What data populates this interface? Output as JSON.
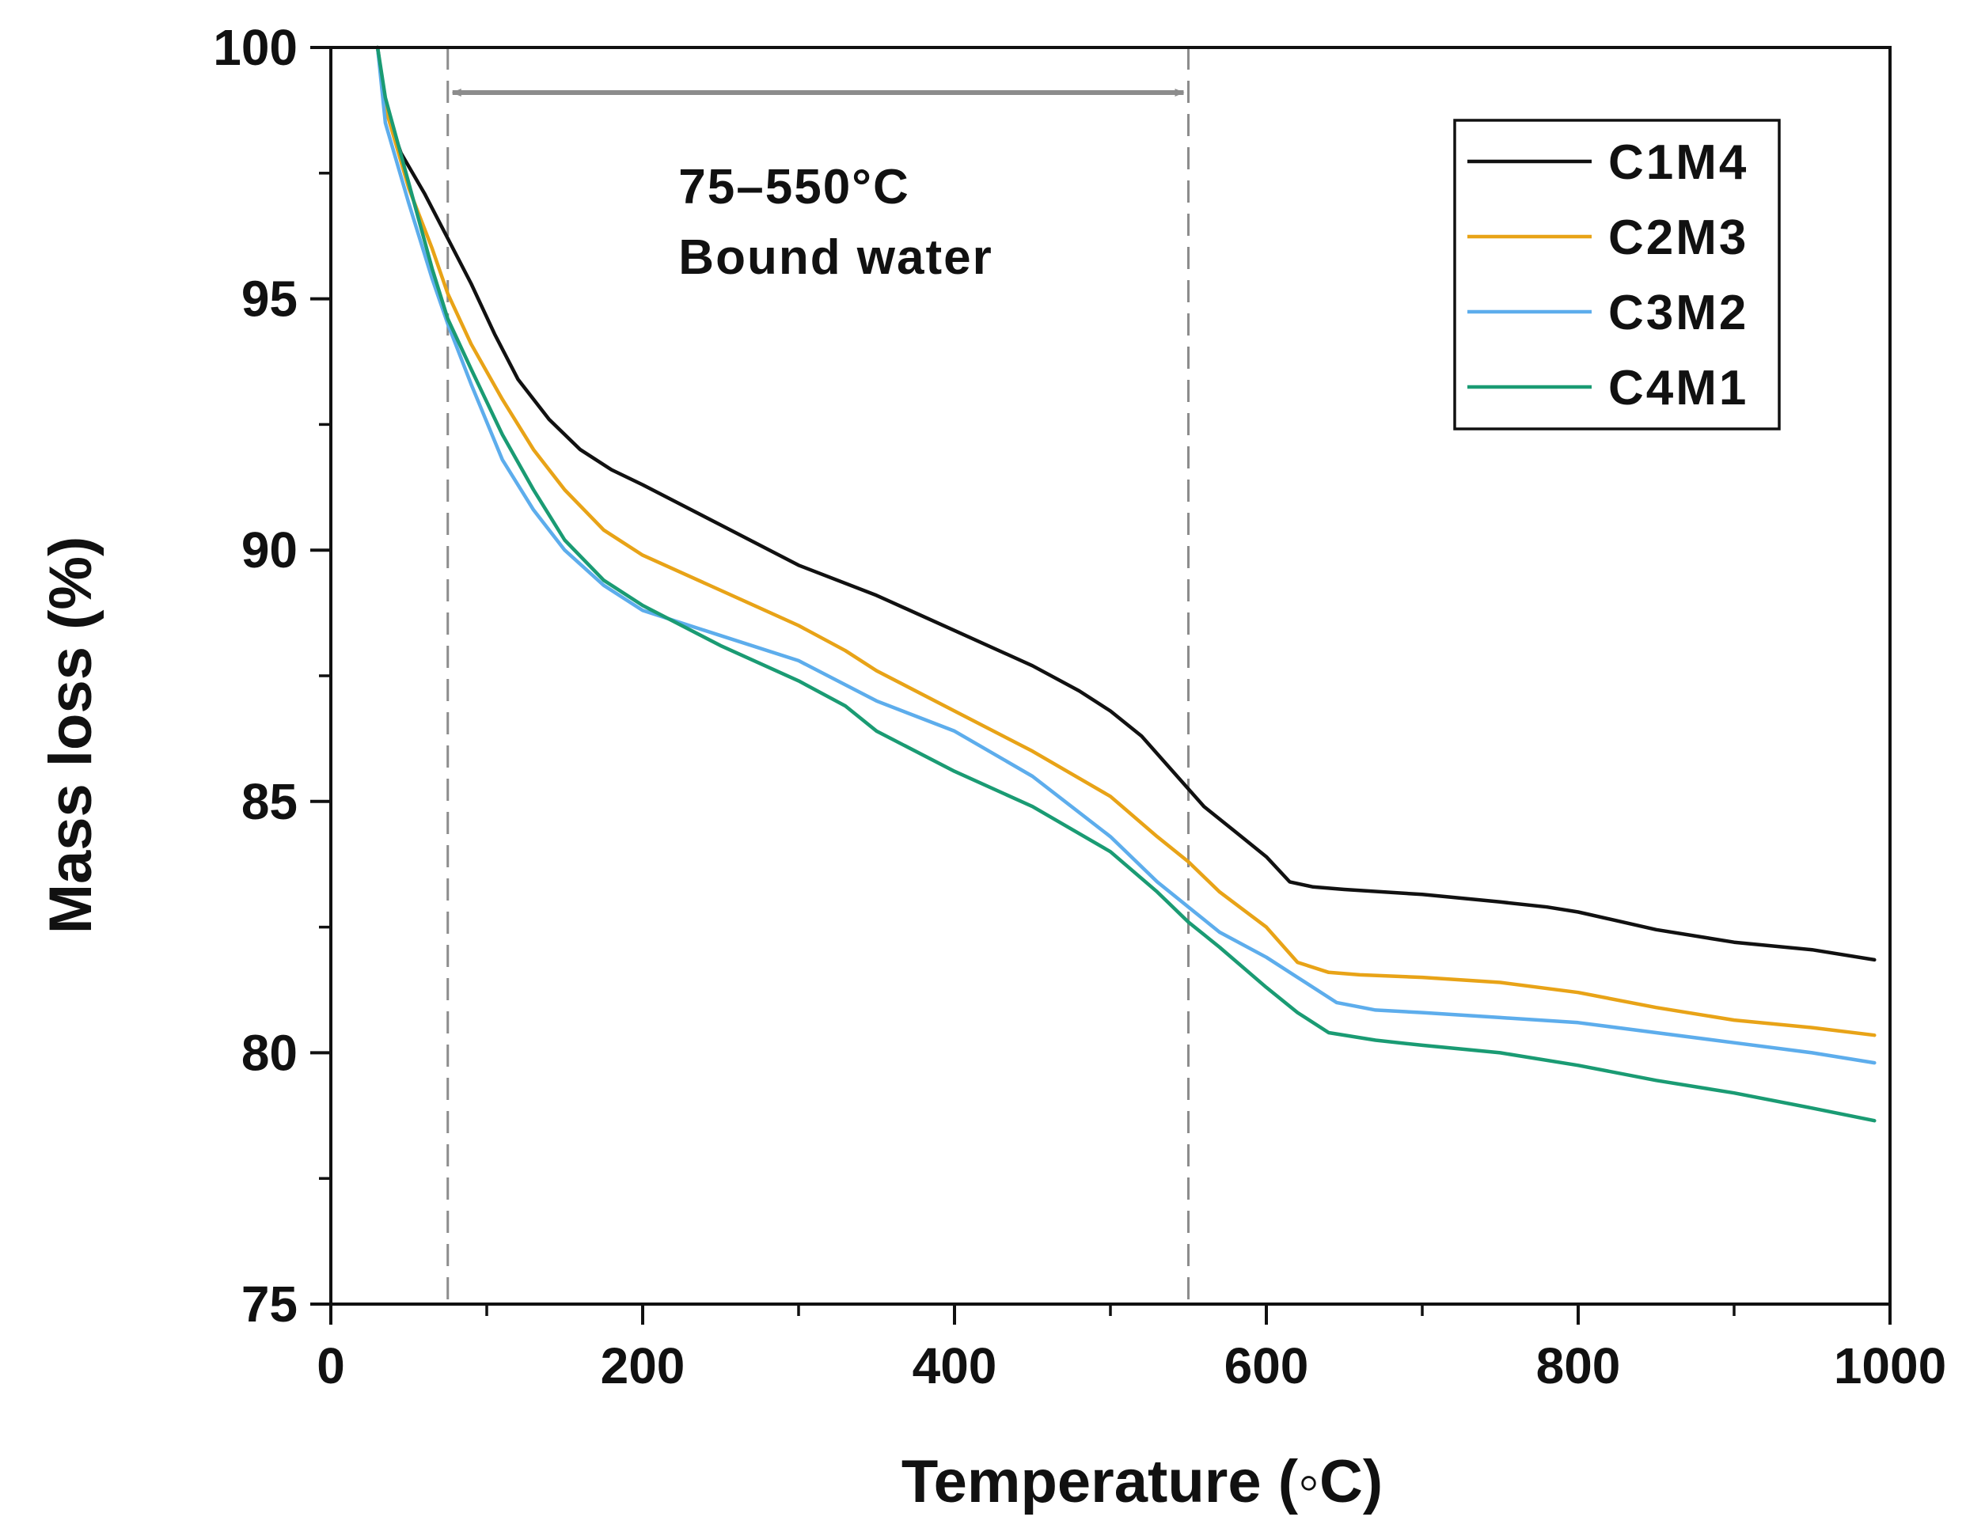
{
  "chart_data": {
    "type": "line",
    "xlabel": "Temperature (◦C)",
    "ylabel": "Mass loss (%)",
    "xlim": [
      0,
      1000
    ],
    "ylim": [
      75,
      100
    ],
    "x_ticks": [
      0,
      200,
      400,
      600,
      800,
      1000
    ],
    "y_ticks": [
      75,
      80,
      85,
      90,
      95,
      100
    ],
    "x_minor_ticks": [
      100,
      300,
      500,
      700,
      900
    ],
    "y_minor_ticks": [
      77.5,
      82.5,
      87.5,
      92.5,
      97.5
    ],
    "grid": false,
    "legend_position": "top-right",
    "annotation": {
      "range": [
        75,
        550
      ],
      "line1": "75–550°C",
      "line2": "Bound water",
      "color": "#8c8c8c"
    },
    "series": [
      {
        "name": "C1M4",
        "color": "#111111",
        "points": [
          [
            30,
            100
          ],
          [
            35,
            98.8
          ],
          [
            45,
            97.9
          ],
          [
            60,
            97.1
          ],
          [
            75,
            96.2
          ],
          [
            90,
            95.3
          ],
          [
            105,
            94.3
          ],
          [
            120,
            93.4
          ],
          [
            140,
            92.6
          ],
          [
            160,
            92.0
          ],
          [
            180,
            91.6
          ],
          [
            200,
            91.3
          ],
          [
            250,
            90.5
          ],
          [
            300,
            89.7
          ],
          [
            350,
            89.1
          ],
          [
            400,
            88.4
          ],
          [
            450,
            87.7
          ],
          [
            480,
            87.2
          ],
          [
            500,
            86.8
          ],
          [
            520,
            86.3
          ],
          [
            540,
            85.6
          ],
          [
            560,
            84.9
          ],
          [
            580,
            84.4
          ],
          [
            600,
            83.9
          ],
          [
            615,
            83.4
          ],
          [
            630,
            83.3
          ],
          [
            650,
            83.25
          ],
          [
            700,
            83.15
          ],
          [
            750,
            83.0
          ],
          [
            780,
            82.9
          ],
          [
            800,
            82.8
          ],
          [
            850,
            82.45
          ],
          [
            900,
            82.2
          ],
          [
            950,
            82.05
          ],
          [
            990,
            81.85
          ]
        ]
      },
      {
        "name": "C2M3",
        "color": "#E8A317",
        "points": [
          [
            30,
            100
          ],
          [
            35,
            98.8
          ],
          [
            50,
            97.2
          ],
          [
            65,
            96.0
          ],
          [
            75,
            95.1
          ],
          [
            90,
            94.1
          ],
          [
            110,
            93.0
          ],
          [
            130,
            92.0
          ],
          [
            150,
            91.2
          ],
          [
            175,
            90.4
          ],
          [
            200,
            89.9
          ],
          [
            250,
            89.2
          ],
          [
            300,
            88.5
          ],
          [
            330,
            88.0
          ],
          [
            350,
            87.6
          ],
          [
            400,
            86.8
          ],
          [
            450,
            86.0
          ],
          [
            500,
            85.1
          ],
          [
            530,
            84.3
          ],
          [
            550,
            83.8
          ],
          [
            570,
            83.2
          ],
          [
            600,
            82.5
          ],
          [
            620,
            81.8
          ],
          [
            640,
            81.6
          ],
          [
            660,
            81.55
          ],
          [
            700,
            81.5
          ],
          [
            750,
            81.4
          ],
          [
            800,
            81.2
          ],
          [
            850,
            80.9
          ],
          [
            900,
            80.65
          ],
          [
            950,
            80.5
          ],
          [
            990,
            80.35
          ]
        ]
      },
      {
        "name": "C3M2",
        "color": "#5DADEC",
        "points": [
          [
            30,
            100
          ],
          [
            35,
            98.5
          ],
          [
            50,
            96.9
          ],
          [
            65,
            95.4
          ],
          [
            75,
            94.5
          ],
          [
            90,
            93.3
          ],
          [
            110,
            91.8
          ],
          [
            130,
            90.8
          ],
          [
            150,
            90.0
          ],
          [
            175,
            89.3
          ],
          [
            200,
            88.8
          ],
          [
            250,
            88.3
          ],
          [
            300,
            87.8
          ],
          [
            350,
            87.0
          ],
          [
            400,
            86.4
          ],
          [
            450,
            85.5
          ],
          [
            500,
            84.3
          ],
          [
            530,
            83.4
          ],
          [
            550,
            82.9
          ],
          [
            570,
            82.4
          ],
          [
            600,
            81.9
          ],
          [
            620,
            81.5
          ],
          [
            645,
            81.0
          ],
          [
            670,
            80.85
          ],
          [
            700,
            80.8
          ],
          [
            750,
            80.7
          ],
          [
            800,
            80.6
          ],
          [
            850,
            80.4
          ],
          [
            900,
            80.2
          ],
          [
            950,
            80.0
          ],
          [
            990,
            79.8
          ]
        ]
      },
      {
        "name": "C4M1",
        "color": "#1A9B73",
        "points": [
          [
            30,
            100
          ],
          [
            35,
            99.0
          ],
          [
            50,
            97.3
          ],
          [
            65,
            95.6
          ],
          [
            75,
            94.6
          ],
          [
            90,
            93.6
          ],
          [
            110,
            92.3
          ],
          [
            130,
            91.2
          ],
          [
            150,
            90.2
          ],
          [
            175,
            89.4
          ],
          [
            200,
            88.9
          ],
          [
            250,
            88.1
          ],
          [
            300,
            87.4
          ],
          [
            330,
            86.9
          ],
          [
            350,
            86.4
          ],
          [
            400,
            85.6
          ],
          [
            450,
            84.9
          ],
          [
            500,
            84.0
          ],
          [
            530,
            83.2
          ],
          [
            550,
            82.6
          ],
          [
            570,
            82.1
          ],
          [
            600,
            81.3
          ],
          [
            620,
            80.8
          ],
          [
            640,
            80.4
          ],
          [
            670,
            80.25
          ],
          [
            700,
            80.15
          ],
          [
            750,
            80.0
          ],
          [
            800,
            79.75
          ],
          [
            850,
            79.45
          ],
          [
            900,
            79.2
          ],
          [
            950,
            78.9
          ],
          [
            990,
            78.65
          ]
        ]
      }
    ]
  }
}
